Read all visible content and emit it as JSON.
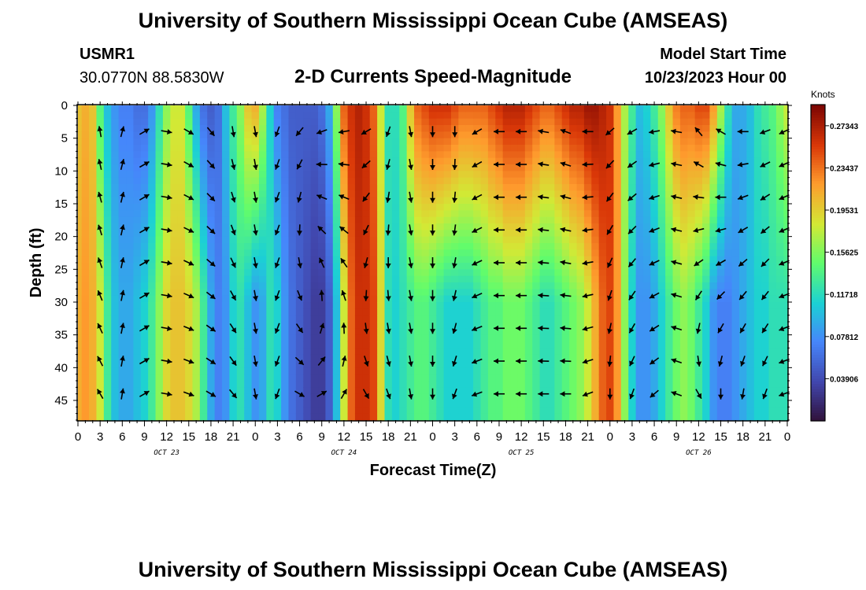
{
  "title": "University of Southern Mississippi Ocean Cube (AMSEAS)",
  "footer_title": "University of Southern Mississippi Ocean Cube (AMSEAS)",
  "station": {
    "id": "USMR1",
    "coords": "30.0770N  88.5830W"
  },
  "model": {
    "start_label": "Model Start Time",
    "start_value": "10/23/2023 Hour 00"
  },
  "chart_data": {
    "type": "heatmap",
    "title": "2-D Currents Speed-Magnitude",
    "xlabel": "Forecast Time(Z)",
    "ylabel": "Depth (ft)",
    "x_hours_range": [
      0,
      96
    ],
    "y_depth_range_ft": [
      0,
      48
    ],
    "x_tick_labels": [
      "0",
      "3",
      "6",
      "9",
      "12",
      "15",
      "18",
      "21",
      "0",
      "3",
      "6",
      "9",
      "12",
      "15",
      "18",
      "21",
      "0",
      "3",
      "6",
      "9",
      "12",
      "15",
      "18",
      "21",
      "0",
      "3",
      "6",
      "9",
      "12",
      "15",
      "18",
      "21",
      "0"
    ],
    "y_tick_labels": [
      "0",
      "5",
      "10",
      "15",
      "20",
      "25",
      "30",
      "35",
      "40",
      "45"
    ],
    "date_labels": [
      "OCT 23",
      "OCT 24",
      "OCT 25",
      "OCT 26"
    ],
    "colorbar": {
      "units": "Knots",
      "range": [
        0.0,
        0.293
      ],
      "tick_labels": [
        "0.27343",
        "0.23437",
        "0.19531",
        "0.15625",
        "0.11718",
        "0.07812",
        "0.03906"
      ]
    },
    "speed_profile_knots": {
      "description": "approximate depth-averaged speed by forecast hour; profile_shape gives a multiplier by depth",
      "hours": [
        0,
        1,
        2,
        3,
        4,
        5,
        6,
        7,
        8,
        9,
        10,
        11,
        12,
        13,
        14,
        15,
        16,
        17,
        18,
        19,
        20,
        21,
        22,
        23,
        24,
        25,
        26,
        27,
        28,
        29,
        30,
        31,
        32,
        33,
        34,
        35,
        36,
        37,
        38,
        39,
        40,
        41,
        42,
        43,
        44,
        45,
        46,
        47,
        48,
        49,
        50,
        51,
        52,
        53,
        54,
        55,
        56,
        57,
        58,
        59,
        60,
        61,
        62,
        63,
        64,
        65,
        66,
        67,
        68,
        69,
        70,
        71,
        72,
        73,
        74,
        75,
        76,
        77,
        78,
        79,
        80,
        81,
        82,
        83,
        84,
        85,
        86,
        87,
        88,
        89,
        90,
        91,
        92,
        93,
        94,
        95,
        96
      ],
      "surface": [
        0.2,
        0.21,
        0.2,
        0.14,
        0.1,
        0.08,
        0.07,
        0.07,
        0.06,
        0.06,
        0.08,
        0.12,
        0.16,
        0.18,
        0.18,
        0.14,
        0.09,
        0.06,
        0.05,
        0.06,
        0.1,
        0.13,
        0.16,
        0.2,
        0.21,
        0.17,
        0.11,
        0.07,
        0.06,
        0.05,
        0.05,
        0.05,
        0.05,
        0.06,
        0.09,
        0.16,
        0.24,
        0.26,
        0.27,
        0.26,
        0.24,
        0.18,
        0.12,
        0.12,
        0.14,
        0.2,
        0.24,
        0.25,
        0.26,
        0.26,
        0.26,
        0.25,
        0.24,
        0.24,
        0.24,
        0.24,
        0.25,
        0.26,
        0.27,
        0.27,
        0.27,
        0.26,
        0.25,
        0.24,
        0.24,
        0.25,
        0.26,
        0.27,
        0.27,
        0.28,
        0.28,
        0.27,
        0.26,
        0.22,
        0.17,
        0.13,
        0.1,
        0.11,
        0.13,
        0.16,
        0.2,
        0.23,
        0.24,
        0.24,
        0.25,
        0.25,
        0.22,
        0.17,
        0.12,
        0.09,
        0.09,
        0.1,
        0.12,
        0.13,
        0.14,
        0.16,
        0.18
      ],
      "deep": [
        0.21,
        0.22,
        0.21,
        0.18,
        0.13,
        0.1,
        0.09,
        0.09,
        0.1,
        0.11,
        0.13,
        0.16,
        0.19,
        0.2,
        0.2,
        0.19,
        0.17,
        0.13,
        0.09,
        0.07,
        0.08,
        0.11,
        0.12,
        0.1,
        0.08,
        0.09,
        0.12,
        0.11,
        0.08,
        0.06,
        0.05,
        0.04,
        0.03,
        0.03,
        0.05,
        0.1,
        0.18,
        0.24,
        0.26,
        0.26,
        0.25,
        0.19,
        0.12,
        0.11,
        0.12,
        0.13,
        0.14,
        0.14,
        0.13,
        0.12,
        0.11,
        0.11,
        0.11,
        0.11,
        0.12,
        0.13,
        0.14,
        0.14,
        0.15,
        0.15,
        0.15,
        0.14,
        0.13,
        0.12,
        0.12,
        0.13,
        0.14,
        0.15,
        0.16,
        0.18,
        0.21,
        0.24,
        0.25,
        0.22,
        0.16,
        0.11,
        0.08,
        0.08,
        0.09,
        0.11,
        0.13,
        0.15,
        0.16,
        0.15,
        0.13,
        0.11,
        0.08,
        0.07,
        0.07,
        0.08,
        0.09,
        0.1,
        0.11,
        0.11,
        0.12,
        0.12,
        0.12
      ]
    },
    "arrow_direction_deg": {
      "description": "approximate vector direction (degrees clockwise from north, i.e. direction toward) sampled every 3 hours",
      "hours": [
        3,
        6,
        9,
        12,
        15,
        18,
        21,
        24,
        27,
        30,
        33,
        36,
        39,
        42,
        45,
        48,
        51,
        54,
        57,
        60,
        63,
        66,
        69,
        72,
        75,
        78,
        81,
        84,
        87,
        90,
        93,
        96
      ],
      "surface": [
        350,
        15,
        60,
        100,
        120,
        140,
        170,
        170,
        200,
        220,
        250,
        260,
        240,
        200,
        170,
        180,
        180,
        240,
        270,
        270,
        280,
        290,
        270,
        230,
        240,
        260,
        280,
        320,
        300,
        270,
        250,
        245
      ],
      "deep": [
        330,
        10,
        60,
        100,
        110,
        120,
        140,
        170,
        200,
        120,
        60,
        30,
        150,
        160,
        170,
        180,
        200,
        250,
        270,
        270,
        270,
        270,
        250,
        180,
        200,
        230,
        290,
        150,
        180,
        190,
        200,
        250
      ]
    }
  }
}
